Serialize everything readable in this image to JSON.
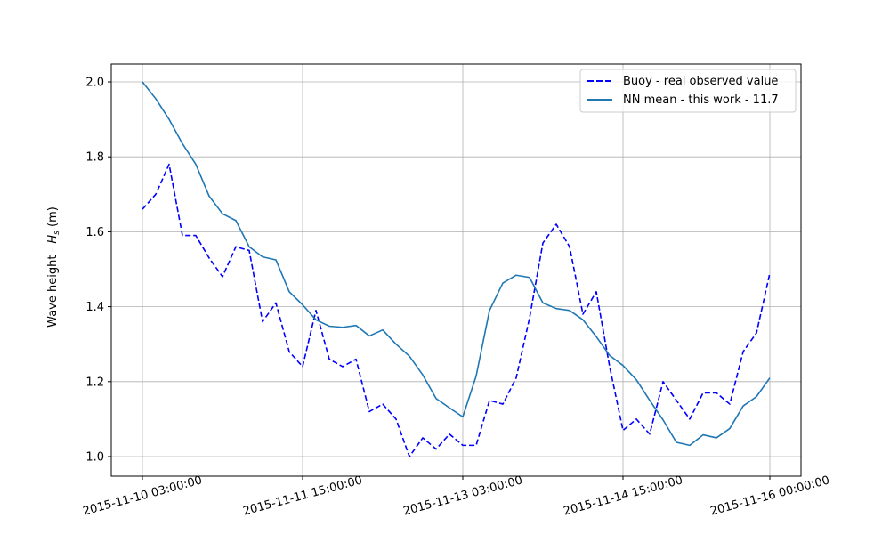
{
  "chart_data": {
    "type": "line",
    "title": "",
    "xlabel": "",
    "ylabel": "Wave height - ",
    "ylabel_symbol": "H",
    "ylabel_subscript": "s",
    "ylabel_unit": " (m)",
    "x_start": "2015-11-10 03:00:00",
    "x_end": "2015-11-16 00:00:00",
    "x_step_hours": 3,
    "x_ticks": [
      "2015-11-10 03:00:00",
      "2015-11-11 15:00:00",
      "2015-11-13 03:00:00",
      "2015-11-14 15:00:00",
      "2015-11-16 00:00:00"
    ],
    "y_ticks": [
      "1.0",
      "1.2",
      "1.4",
      "1.6",
      "1.8",
      "2.0"
    ],
    "ylim": [
      0.95,
      2.05
    ],
    "grid": true,
    "legend_position": "top-right",
    "series": [
      {
        "name": "Buoy - real observed value",
        "color": "#0000ff",
        "style": "dashed",
        "values": [
          1.66,
          1.7,
          1.78,
          1.59,
          1.59,
          1.53,
          1.48,
          1.56,
          1.55,
          1.36,
          1.41,
          1.28,
          1.24,
          1.39,
          1.26,
          1.24,
          1.26,
          1.12,
          1.14,
          1.1,
          1.0,
          1.05,
          1.02,
          1.06,
          1.03,
          1.03,
          1.15,
          1.14,
          1.21,
          1.37,
          1.57,
          1.62,
          1.56,
          1.38,
          1.44,
          1.24,
          1.07,
          1.1,
          1.06,
          1.2,
          1.15,
          1.1,
          1.17,
          1.17,
          1.14,
          1.28,
          1.33,
          1.49
        ]
      },
      {
        "name": "NN mean - this work - 11.7",
        "color": "#1f77b4",
        "style": "solid",
        "values": [
          2.0,
          1.955,
          1.9,
          1.835,
          1.78,
          1.695,
          1.648,
          1.63,
          1.56,
          1.533,
          1.525,
          1.44,
          1.405,
          1.365,
          1.348,
          1.345,
          1.35,
          1.322,
          1.338,
          1.3,
          1.268,
          1.218,
          1.155,
          1.13,
          1.106,
          1.215,
          1.39,
          1.463,
          1.484,
          1.478,
          1.41,
          1.395,
          1.39,
          1.365,
          1.32,
          1.27,
          1.243,
          1.205,
          1.15,
          1.098,
          1.038,
          1.03,
          1.058,
          1.05,
          1.075,
          1.135,
          1.16,
          1.21
        ]
      }
    ]
  }
}
